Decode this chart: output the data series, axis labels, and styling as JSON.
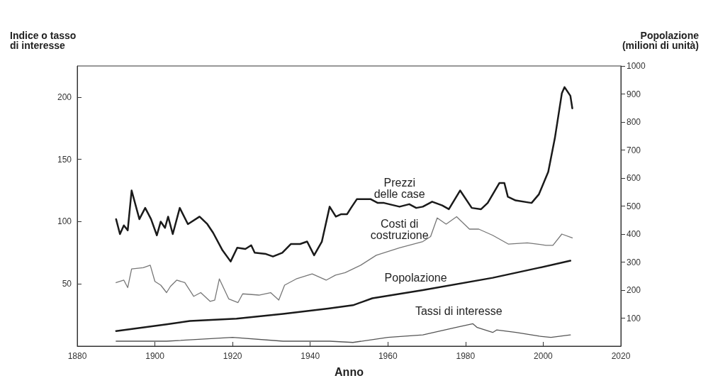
{
  "chart_data": {
    "type": "line",
    "xlabel": "Anno",
    "ylabel": "Indice o tasso\ndi interesse",
    "y2label": "Popolazione\n(milioni di unità)",
    "xlim": [
      1880,
      2020
    ],
    "xticks": [
      1880,
      1900,
      1920,
      1940,
      1960,
      1980,
      2000,
      2020
    ],
    "ylim": [
      0,
      225
    ],
    "yticks": [
      50,
      100,
      150,
      200
    ],
    "y2lim": [
      0,
      1000
    ],
    "y2ticks": [
      100,
      200,
      300,
      400,
      500,
      600,
      700,
      800,
      900,
      1000
    ],
    "grid": false,
    "marker": "none",
    "line_style": "solid",
    "series": [
      {
        "name": "Prezzi\ndelle case",
        "color": "#1a1a1a",
        "x": [
          1890,
          1891,
          1892,
          1893,
          1894,
          1896,
          1897.5,
          1899,
          1900.5,
          1901.5,
          1902.6,
          1903.4,
          1904.6,
          1906.4,
          1908.5,
          1911.5,
          1913.5,
          1915,
          1917.4,
          1919.5,
          1921.2,
          1923.3,
          1924.8,
          1925.7,
          1928.6,
          1930.4,
          1932.8,
          1935,
          1937.4,
          1939.2,
          1941,
          1943,
          1945,
          1946.6,
          1948,
          1949.5,
          1950.5,
          1952,
          1955.6,
          1957.4,
          1959,
          1963,
          1965.5,
          1967.3,
          1969,
          1971.4,
          1974,
          1975.7,
          1978.6,
          1981.6,
          1984,
          1985.7,
          1988.7,
          1990,
          1990.9,
          1992.9,
          1997,
          1998.9,
          2001.3,
          2003,
          2004.8,
          2005.5,
          2007,
          2007.5
        ],
        "values": [
          102,
          90,
          97,
          93,
          125,
          102,
          111,
          102,
          89,
          100,
          95,
          104,
          90,
          111,
          98,
          104,
          98,
          91,
          77,
          68,
          79,
          78,
          81,
          75,
          74,
          72,
          75,
          82,
          82,
          84,
          73,
          84,
          112,
          104,
          106,
          106,
          111,
          118,
          118,
          115,
          115,
          112,
          114,
          111,
          112,
          116,
          113,
          110,
          125,
          111,
          110,
          115,
          131,
          131,
          120,
          117,
          115,
          122,
          140,
          167,
          203,
          208,
          201,
          191
        ]
      },
      {
        "name": "Costi di\ncostruzione",
        "color": "#777777",
        "x": [
          1890,
          1892,
          1893,
          1894,
          1897,
          1898.8,
          1900,
          1901.5,
          1903,
          1904,
          1905.6,
          1907.7,
          1910,
          1911.8,
          1914.2,
          1915.4,
          1916.6,
          1919,
          1921.4,
          1922.6,
          1926.8,
          1929.8,
          1931.9,
          1933.4,
          1936.4,
          1940.5,
          1944.1,
          1946.5,
          1949,
          1953,
          1957,
          1963,
          1969,
          1971,
          1972.7,
          1975,
          1977.7,
          1981,
          1983.4,
          1987,
          1991,
          1995.9,
          2000.7,
          2002.5,
          2004.8,
          2007.5
        ],
        "values": [
          51,
          53,
          47,
          62,
          63,
          65,
          52,
          49,
          43,
          48,
          53,
          51,
          40,
          43,
          36,
          37,
          54,
          38,
          35,
          42,
          41,
          43,
          37,
          49,
          54,
          58,
          53,
          57,
          59,
          65,
          73,
          79,
          84,
          88,
          103,
          98,
          104,
          94,
          94,
          89,
          82,
          83,
          81,
          81,
          90,
          87
        ]
      },
      {
        "name": "Popolazione",
        "color": "#1a1a1a",
        "axis": "y2",
        "x": [
          1890,
          1903,
          1909,
          1921,
          1933,
          1944.6,
          1951,
          1956,
          1969,
          1987,
          1999,
          2007
        ],
        "values": [
          54,
          78,
          90,
          98,
          115,
          134,
          146,
          171,
          200,
          244,
          280,
          305
        ]
      },
      {
        "name": "Tassi di interesse",
        "color": "#555555",
        "x": [
          1890,
          1903,
          1920,
          1933,
          1945,
          1951,
          1960,
          1969,
          1977.5,
          1981.9,
          1983,
          1987,
          1988,
          1993,
          1999,
          2002,
          2007
        ],
        "values": [
          4,
          4,
          7,
          4,
          4,
          3,
          7,
          9,
          15,
          18,
          15,
          11,
          13,
          11,
          8,
          7,
          9
        ]
      }
    ]
  }
}
